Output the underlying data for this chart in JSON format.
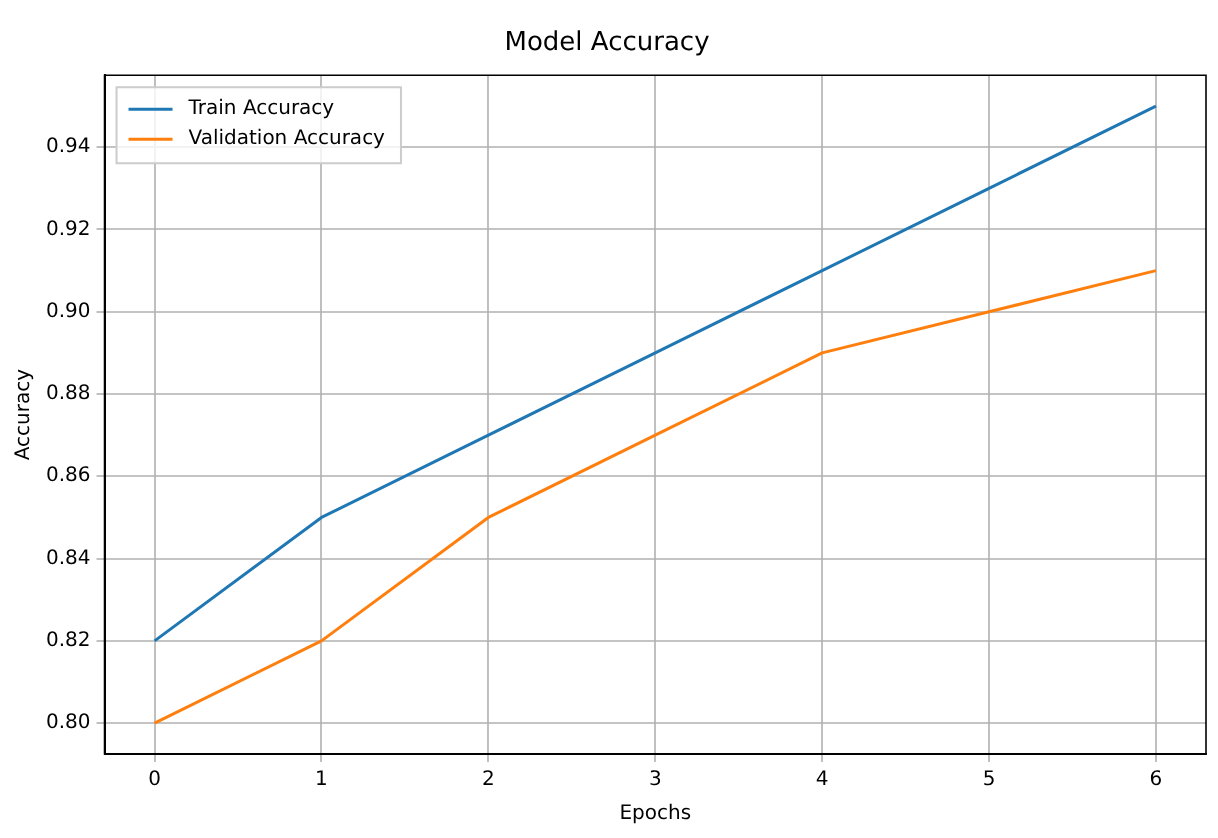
{
  "chart_data": {
    "type": "line",
    "title": "Model Accuracy",
    "xlabel": "Epochs",
    "ylabel": "Accuracy",
    "x": [
      0,
      1,
      2,
      3,
      4,
      5,
      6
    ],
    "series": [
      {
        "name": "Train Accuracy",
        "color": "#1f77b4",
        "values": [
          0.82,
          0.85,
          0.87,
          0.89,
          0.91,
          0.93,
          0.95
        ]
      },
      {
        "name": "Validation Accuracy",
        "color": "#ff7f0e",
        "values": [
          0.8,
          0.82,
          0.85,
          0.87,
          0.89,
          0.9,
          0.91
        ]
      }
    ],
    "xlim": [
      -0.3,
      6.3
    ],
    "xticks": [
      0,
      1,
      2,
      3,
      4,
      5,
      6
    ],
    "ylim": [
      0.7925,
      0.9575
    ],
    "yticks": [
      {
        "value": 0.8,
        "label": "0.80"
      },
      0.82,
      0.84,
      0.86,
      0.88,
      {
        "value": 0.9,
        "label": "0.90"
      },
      0.92,
      0.94
    ],
    "grid": true,
    "legend": "top left",
    "marker": "none",
    "line_style": "solid"
  }
}
